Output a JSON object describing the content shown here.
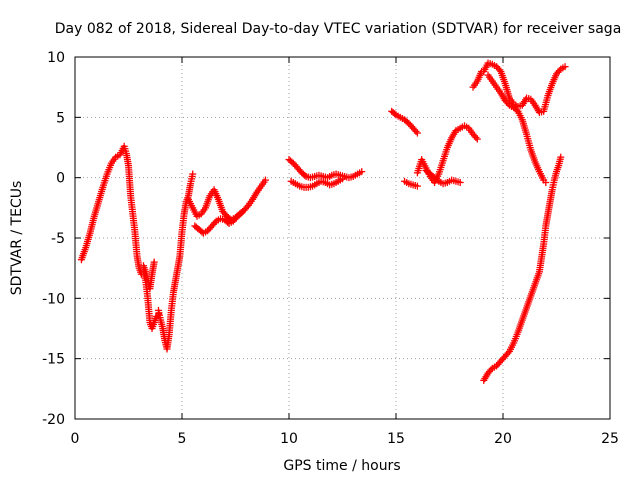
{
  "chart_data": {
    "type": "scatter",
    "title": "Day 082 of 2018, Sidereal Day-to-day VTEC variation (SDTVAR) for receiver saga",
    "xlabel": "GPS time / hours",
    "ylabel": "SDTVAR / TECUs",
    "xlim": [
      0,
      25
    ],
    "ylim": [
      -20,
      10
    ],
    "xticks": [
      0,
      5,
      10,
      15,
      20,
      25
    ],
    "yticks": [
      -20,
      -15,
      -10,
      -5,
      0,
      5,
      10
    ],
    "grid": true,
    "marker": "plus",
    "color": "#ff0000",
    "series": [
      {
        "x": [
          0.3,
          0.5,
          0.7,
          0.9,
          1.1,
          1.3,
          1.5,
          1.7,
          1.9,
          2.1,
          2.3,
          2.4,
          2.5,
          2.6,
          2.7,
          2.8,
          2.9,
          3.0,
          3.1,
          3.2,
          3.3,
          3.4,
          3.5,
          3.6,
          3.7,
          3.8,
          3.9
        ],
        "y": [
          -6.8,
          -5.8,
          -4.6,
          -3.2,
          -2.0,
          -0.8,
          0.3,
          1.2,
          1.7,
          1.9,
          2.6,
          2.0,
          1.0,
          -1.5,
          -3.0,
          -4.5,
          -6.5,
          -7.5,
          -8.0,
          -7.8,
          -8.5,
          -10.0,
          -12.0,
          -12.5,
          -12.0,
          -11.5,
          -11.3
        ]
      },
      {
        "x": [
          3.2,
          3.3,
          3.4,
          3.5,
          3.6,
          3.7
        ],
        "y": [
          -7.3,
          -7.8,
          -8.5,
          -9.2,
          -8.0,
          -7.0
        ]
      },
      {
        "x": [
          3.9,
          4.0,
          4.1,
          4.2,
          4.3,
          4.4,
          4.5,
          4.6,
          4.7,
          4.8,
          4.9,
          5.0,
          5.1,
          5.2,
          5.3,
          5.4,
          5.5
        ],
        "y": [
          -11.0,
          -11.8,
          -12.5,
          -13.5,
          -14.2,
          -13.0,
          -11.0,
          -9.5,
          -8.5,
          -7.5,
          -6.5,
          -4.5,
          -3.0,
          -2.0,
          -1.5,
          -0.5,
          0.3
        ]
      },
      {
        "x": [
          5.3,
          5.5,
          5.7,
          5.9,
          6.1,
          6.3,
          6.5,
          6.7,
          6.9,
          7.1,
          7.3,
          7.5,
          7.7,
          7.9,
          8.1,
          8.3,
          8.5,
          8.7,
          8.9
        ],
        "y": [
          -1.8,
          -2.5,
          -3.2,
          -3.0,
          -2.5,
          -1.5,
          -1.0,
          -1.8,
          -2.8,
          -3.2,
          -3.5,
          -3.3,
          -3.0,
          -2.7,
          -2.3,
          -1.8,
          -1.2,
          -0.7,
          -0.2
        ]
      },
      {
        "x": [
          5.6,
          5.8,
          6.0,
          6.2,
          6.4,
          6.6,
          6.8,
          7.0,
          7.2,
          7.4,
          7.6,
          7.8
        ],
        "y": [
          -4.0,
          -4.3,
          -4.6,
          -4.4,
          -4.0,
          -3.6,
          -3.4,
          -3.5,
          -3.8,
          -3.6,
          -3.2,
          -2.9
        ]
      },
      {
        "x": [
          10.0,
          10.2,
          10.4,
          10.6,
          10.8,
          11.0,
          11.2,
          11.4,
          11.6,
          11.8,
          12.0,
          12.2,
          12.4,
          12.6,
          12.8,
          13.0,
          13.2,
          13.4
        ],
        "y": [
          1.5,
          1.2,
          0.8,
          0.4,
          0.1,
          0.0,
          0.1,
          0.2,
          0.1,
          0.0,
          0.2,
          0.3,
          0.2,
          0.1,
          0.0,
          0.1,
          0.3,
          0.5
        ]
      },
      {
        "x": [
          10.1,
          10.3,
          10.5,
          10.7,
          10.9,
          11.1,
          11.3,
          11.5,
          11.7,
          11.9,
          12.1,
          12.3,
          12.5
        ],
        "y": [
          -0.3,
          -0.5,
          -0.7,
          -0.8,
          -0.8,
          -0.7,
          -0.5,
          -0.3,
          -0.4,
          -0.6,
          -0.5,
          -0.3,
          -0.1
        ]
      },
      {
        "x": [
          14.8,
          15.0,
          15.2,
          15.4,
          15.6,
          15.8,
          16.0
        ],
        "y": [
          5.5,
          5.2,
          5.0,
          4.8,
          4.5,
          4.1,
          3.7
        ]
      },
      {
        "x": [
          15.4,
          15.6,
          15.8,
          16.0
        ],
        "y": [
          -0.3,
          -0.5,
          -0.6,
          -0.7
        ]
      },
      {
        "x": [
          16.0,
          16.2,
          16.4,
          16.6,
          16.8,
          17.0,
          17.2,
          17.4,
          17.6,
          17.8,
          18.0,
          18.2,
          18.4,
          18.6,
          18.8
        ],
        "y": [
          0.4,
          1.5,
          0.8,
          0.1,
          -0.4,
          0.3,
          1.4,
          2.5,
          3.3,
          3.9,
          4.1,
          4.3,
          4.1,
          3.6,
          3.2
        ]
      },
      {
        "x": [
          16.4,
          16.6,
          16.8,
          17.0,
          17.2,
          17.4,
          17.6,
          17.8,
          18.0
        ],
        "y": [
          0.6,
          0.3,
          0.0,
          -0.3,
          -0.5,
          -0.4,
          -0.2,
          -0.3,
          -0.4
        ]
      },
      {
        "x": [
          18.6,
          18.8,
          19.0
        ],
        "y": [
          7.5,
          8.0,
          8.8
        ]
      },
      {
        "x": [
          19.1,
          19.3,
          19.5,
          19.7,
          19.9,
          20.1,
          20.3,
          20.5,
          20.7,
          20.9,
          21.1,
          21.3,
          21.5,
          21.7,
          21.9,
          22.1,
          22.3,
          22.5,
          22.7,
          22.9
        ],
        "y": [
          8.8,
          9.5,
          9.4,
          9.2,
          8.8,
          7.8,
          6.6,
          6.1,
          5.9,
          6.0,
          6.6,
          6.5,
          6.0,
          5.4,
          5.5,
          6.8,
          7.8,
          8.6,
          9.0,
          9.2
        ]
      },
      {
        "x": [
          19.3,
          19.5,
          19.7,
          19.9,
          20.1,
          20.3,
          20.5,
          20.7,
          20.9,
          21.1,
          21.3,
          21.5,
          21.7,
          21.9,
          22.0
        ],
        "y": [
          8.5,
          8.0,
          7.5,
          7.0,
          6.4,
          6.0,
          5.8,
          5.5,
          4.8,
          3.6,
          2.3,
          1.3,
          0.5,
          -0.2,
          -0.4
        ]
      },
      {
        "x": [
          19.1,
          19.3,
          19.5,
          19.7,
          19.9,
          20.1,
          20.3,
          20.5,
          20.7,
          20.9,
          21.1,
          21.3,
          21.5,
          21.7,
          21.9,
          22.0,
          22.1,
          22.2,
          22.3,
          22.4,
          22.5,
          22.6,
          22.7
        ],
        "y": [
          -16.8,
          -16.2,
          -15.8,
          -15.6,
          -15.2,
          -14.8,
          -14.4,
          -13.7,
          -12.8,
          -11.8,
          -10.8,
          -9.8,
          -8.8,
          -7.8,
          -5.5,
          -4.0,
          -3.0,
          -2.0,
          -1.0,
          -0.2,
          0.5,
          1.0,
          1.7
        ]
      }
    ]
  }
}
